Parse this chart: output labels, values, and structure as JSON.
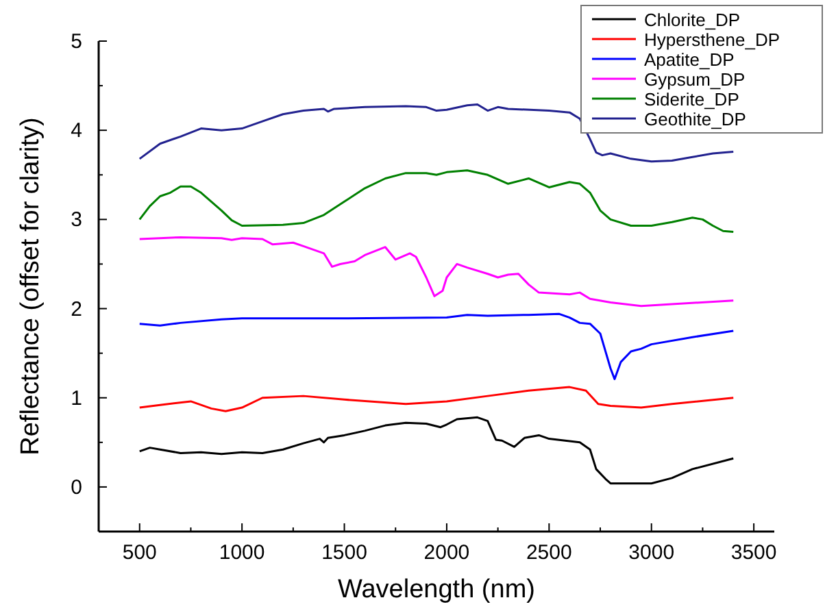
{
  "chart_data": {
    "type": "line",
    "xlabel": "Wavelength (nm)",
    "ylabel": "Reflectance (offset for clarity)",
    "xlim": [
      300,
      3600
    ],
    "xticks": [
      500,
      {
        "value": 750,
        "label": null
      },
      1000,
      {
        "value": 1250,
        "label": null
      },
      1500,
      {
        "value": 1750,
        "label": null
      },
      2000,
      {
        "value": 2250,
        "label": null
      },
      2500,
      {
        "value": 2750,
        "label": null
      },
      3000,
      {
        "value": 3250,
        "label": null
      },
      3500
    ],
    "ylim": [
      -0.5,
      5
    ],
    "yticks": [
      0,
      {
        "value": 0.5,
        "label": null
      },
      1,
      {
        "value": 1.5,
        "label": null
      },
      2,
      {
        "value": 2.5,
        "label": null
      },
      3,
      {
        "value": 3.5,
        "label": null
      },
      4,
      {
        "value": 4.5,
        "label": null
      },
      5
    ],
    "grid": false,
    "legend": "top right",
    "marker": "none",
    "line_style": "solid",
    "series": [
      {
        "name": "Chlorite_DP",
        "color": "#000000",
        "x": [
          500,
          550,
          600,
          700,
          800,
          900,
          1000,
          1100,
          1200,
          1300,
          1380,
          1400,
          1420,
          1500,
          1600,
          1700,
          1800,
          1900,
          1970,
          2000,
          2050,
          2150,
          2200,
          2240,
          2270,
          2330,
          2380,
          2450,
          2500,
          2650,
          2700,
          2730,
          2780,
          2800,
          3000,
          3100,
          3200,
          3400
        ],
        "values": [
          0.4,
          0.44,
          0.42,
          0.38,
          0.39,
          0.37,
          0.39,
          0.38,
          0.42,
          0.49,
          0.54,
          0.5,
          0.55,
          0.58,
          0.63,
          0.69,
          0.72,
          0.71,
          0.67,
          0.7,
          0.76,
          0.78,
          0.74,
          0.53,
          0.52,
          0.45,
          0.55,
          0.58,
          0.54,
          0.5,
          0.42,
          0.2,
          0.08,
          0.04,
          0.04,
          0.1,
          0.2,
          0.32
        ]
      },
      {
        "name": "Hypersthene_DP",
        "color": "#ff0000",
        "x": [
          500,
          600,
          750,
          850,
          920,
          1000,
          1100,
          1300,
          1500,
          1800,
          2000,
          2200,
          2400,
          2600,
          2680,
          2740,
          2800,
          2950,
          3100,
          3400
        ],
        "values": [
          0.89,
          0.92,
          0.96,
          0.88,
          0.85,
          0.89,
          1.0,
          1.02,
          0.98,
          0.93,
          0.96,
          1.02,
          1.08,
          1.12,
          1.08,
          0.93,
          0.91,
          0.89,
          0.93,
          1.0
        ]
      },
      {
        "name": "Apatite_DP",
        "color": "#0000ff",
        "x": [
          500,
          600,
          700,
          900,
          1000,
          1500,
          2000,
          2100,
          2200,
          2400,
          2550,
          2600,
          2650,
          2700,
          2750,
          2800,
          2820,
          2850,
          2900,
          2950,
          3000,
          3200,
          3400
        ],
        "values": [
          1.83,
          1.81,
          1.84,
          1.88,
          1.89,
          1.89,
          1.9,
          1.93,
          1.92,
          1.93,
          1.94,
          1.9,
          1.84,
          1.83,
          1.72,
          1.33,
          1.21,
          1.4,
          1.52,
          1.55,
          1.6,
          1.68,
          1.75
        ]
      },
      {
        "name": "Gypsum_DP",
        "color": "#ff00ff",
        "x": [
          500,
          700,
          900,
          950,
          1000,
          1100,
          1150,
          1250,
          1300,
          1400,
          1440,
          1480,
          1550,
          1600,
          1700,
          1750,
          1820,
          1850,
          1900,
          1940,
          1980,
          2000,
          2050,
          2100,
          2200,
          2250,
          2300,
          2350,
          2400,
          2450,
          2600,
          2650,
          2700,
          2800,
          2950,
          3100,
          3400
        ],
        "values": [
          2.78,
          2.8,
          2.79,
          2.77,
          2.79,
          2.78,
          2.72,
          2.74,
          2.7,
          2.62,
          2.47,
          2.5,
          2.53,
          2.6,
          2.69,
          2.55,
          2.62,
          2.58,
          2.35,
          2.14,
          2.2,
          2.35,
          2.5,
          2.46,
          2.39,
          2.35,
          2.38,
          2.39,
          2.27,
          2.18,
          2.16,
          2.18,
          2.11,
          2.07,
          2.03,
          2.05,
          2.09
        ]
      },
      {
        "name": "Siderite_DP",
        "color": "#008000",
        "x": [
          500,
          550,
          600,
          650,
          700,
          750,
          800,
          900,
          950,
          1000,
          1200,
          1300,
          1400,
          1500,
          1600,
          1700,
          1800,
          1900,
          1950,
          2000,
          2100,
          2200,
          2300,
          2400,
          2500,
          2600,
          2650,
          2700,
          2750,
          2800,
          2900,
          3000,
          3100,
          3200,
          3250,
          3300,
          3350,
          3400
        ],
        "values": [
          3.0,
          3.15,
          3.26,
          3.3,
          3.37,
          3.37,
          3.3,
          3.1,
          2.99,
          2.93,
          2.94,
          2.96,
          3.05,
          3.2,
          3.35,
          3.46,
          3.52,
          3.52,
          3.5,
          3.53,
          3.55,
          3.5,
          3.4,
          3.46,
          3.36,
          3.42,
          3.4,
          3.3,
          3.1,
          3.0,
          2.93,
          2.93,
          2.97,
          3.02,
          3.0,
          2.93,
          2.87,
          2.86
        ]
      },
      {
        "name": "Geothite_DP",
        "color": "#22228f",
        "x": [
          500,
          600,
          700,
          800,
          900,
          1000,
          1100,
          1200,
          1300,
          1400,
          1420,
          1450,
          1600,
          1800,
          1900,
          1950,
          2000,
          2100,
          2150,
          2200,
          2250,
          2300,
          2500,
          2600,
          2650,
          2700,
          2730,
          2760,
          2800,
          2900,
          3000,
          3100,
          3200,
          3300,
          3400
        ],
        "values": [
          3.68,
          3.85,
          3.93,
          4.02,
          4.0,
          4.02,
          4.1,
          4.18,
          4.22,
          4.24,
          4.21,
          4.24,
          4.26,
          4.27,
          4.26,
          4.22,
          4.23,
          4.28,
          4.29,
          4.22,
          4.26,
          4.24,
          4.22,
          4.2,
          4.13,
          3.9,
          3.75,
          3.72,
          3.74,
          3.68,
          3.65,
          3.66,
          3.7,
          3.74,
          3.76
        ]
      }
    ]
  }
}
